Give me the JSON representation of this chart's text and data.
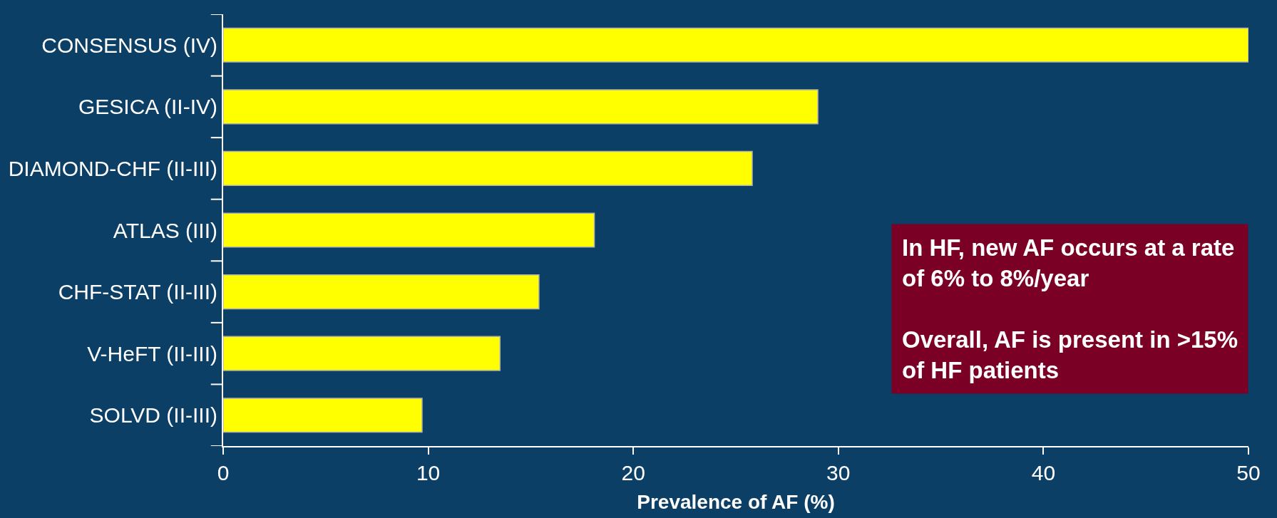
{
  "chart_data": {
    "type": "bar",
    "orientation": "horizontal",
    "xlabel": "Prevalence of AF (%)",
    "categories": [
      "CONSENSUS (IV)",
      "GESICA (II-IV)",
      "DIAMOND-CHF (II-III)",
      "ATLAS (III)",
      "CHF-STAT (II-III)",
      "V-HeFT (II-III)",
      "SOLVD (II-III)"
    ],
    "values": [
      50,
      29,
      25.8,
      18.1,
      15.4,
      13.5,
      9.7
    ],
    "color": "#ffff00",
    "xlim": [
      0,
      50
    ],
    "xticks": [
      0,
      10,
      20,
      30,
      40,
      50
    ],
    "grid": false,
    "legend": false,
    "annotations": [
      "In HF, new AF occurs at a rate of 6% to 8%/year",
      "Overall, AF is present in >15% of HF patients"
    ]
  }
}
